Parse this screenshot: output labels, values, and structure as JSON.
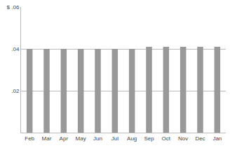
{
  "chart_data": {
    "type": "bar",
    "categories": [
      "Feb",
      "Mar",
      "Apr",
      "May",
      "Jun",
      "Jul",
      "Aug",
      "Sep",
      "Oct",
      "Nov",
      "Dec",
      "Jan"
    ],
    "values": [
      0.04,
      0.04,
      0.04,
      0.04,
      0.04,
      0.04,
      0.04,
      0.041,
      0.041,
      0.041,
      0.041,
      0.041
    ],
    "color": "#999999",
    "ylim": [
      0,
      0.06
    ],
    "yticks": [
      {
        "value": 0.02,
        "label": ".02"
      },
      {
        "value": 0.04,
        "label": ".04"
      },
      {
        "value": 0.06,
        "label": "$ .06"
      }
    ],
    "grid": true
  }
}
